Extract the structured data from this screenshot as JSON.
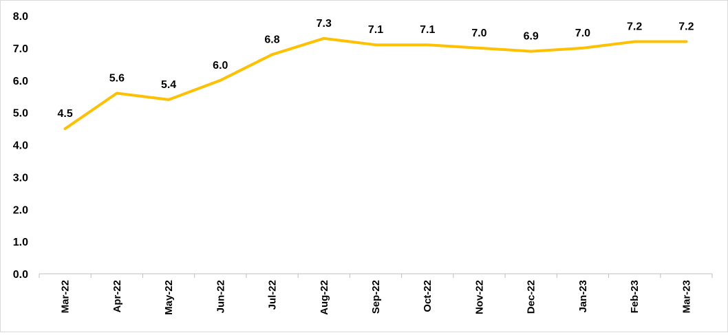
{
  "chart_data": {
    "type": "line",
    "title": "",
    "xlabel": "",
    "ylabel": "",
    "categories": [
      "Mar-22",
      "Apr-22",
      "May-22",
      "Jun-22",
      "Jul-22",
      "Aug-22",
      "Sep-22",
      "Oct-22",
      "Nov-22",
      "Dec-22",
      "Jan-23",
      "Feb-23",
      "Mar-23"
    ],
    "series": [
      {
        "values": [
          4.5,
          5.6,
          5.4,
          6.0,
          6.8,
          7.3,
          7.1,
          7.1,
          7.0,
          6.9,
          7.0,
          7.2,
          7.2
        ],
        "labels": [
          "4.5",
          "5.6",
          "5.4",
          "6.0",
          "6.8",
          "7.3",
          "7.1",
          "7.1",
          "7.0",
          "6.9",
          "7.0",
          "7.2",
          "7.2"
        ],
        "color": "#FFC000"
      }
    ],
    "ylim": [
      0,
      8
    ],
    "yticks": [
      "0.0",
      "1.0",
      "2.0",
      "3.0",
      "4.0",
      "5.0",
      "6.0",
      "7.0",
      "8.0"
    ],
    "grid": false,
    "legend": "none"
  }
}
